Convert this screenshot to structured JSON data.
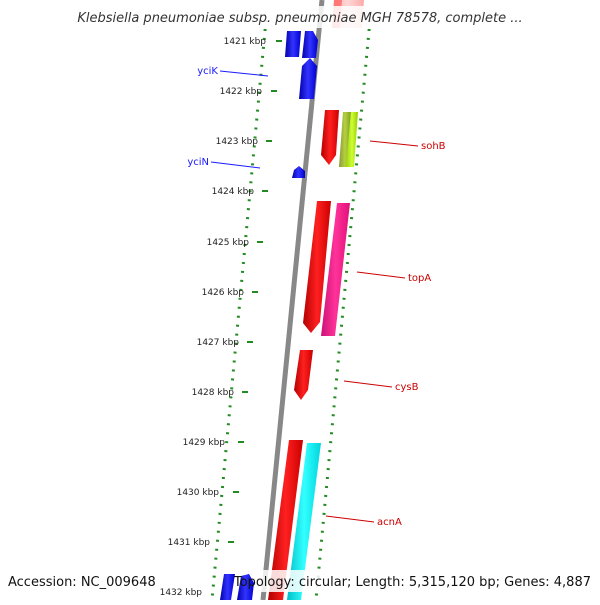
{
  "header": {
    "title": "Klebsiella pneumoniae subsp. pneumoniae MGH 78578, complete ..."
  },
  "footer": {
    "accession": "Accession: NC_009648",
    "topology": "Topology: circular; Length: 5,315,120 bp; Genes: 4,887"
  },
  "ruler": {
    "labels": [
      "1421 kbp",
      "1422 kbp",
      "1423 kbp",
      "1424 kbp",
      "1425 kbp",
      "1426 kbp",
      "1427 kbp",
      "1428 kbp",
      "1429 kbp",
      "1430 kbp",
      "1431 kbp",
      "1432 kbp"
    ]
  },
  "genes": [
    {
      "label": "yciK",
      "color": "#1a1aff"
    },
    {
      "label": "yciN",
      "color": "#1a1aff"
    },
    {
      "label": "sohB",
      "color": "#cc0000"
    },
    {
      "label": "topA",
      "color": "#cc0000"
    },
    {
      "label": "cysB",
      "color": "#cc0000"
    },
    {
      "label": "acnA",
      "color": "#cc0000"
    }
  ],
  "colors": {
    "forward": "#0000ff",
    "reverse": "#ff0000",
    "magenta": "#ff1493",
    "olive": "#9acd32",
    "cyan": "#00e5ee",
    "pink": "#ffb6b6",
    "dots": "#228b22",
    "backbone": "#888888"
  }
}
